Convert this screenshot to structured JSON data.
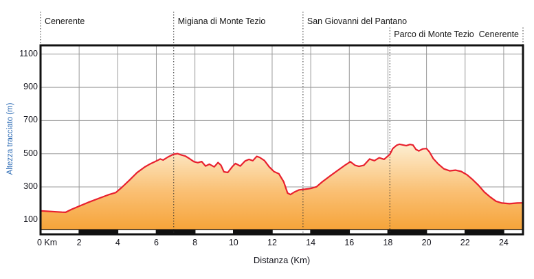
{
  "chart_data": {
    "type": "area",
    "title": "",
    "xlabel": "Distanza (Km)",
    "ylabel": "Altezza tracciato (m)",
    "xlim": [
      0,
      25
    ],
    "ylim": [
      0,
      1150
    ],
    "grid": "on",
    "x_tick_values": [
      0,
      2,
      4,
      6,
      8,
      10,
      12,
      14,
      16,
      18,
      20,
      22,
      24
    ],
    "x_tick_labels": [
      "0 Km",
      "2",
      "4",
      "6",
      "8",
      "10",
      "12",
      "14",
      "16",
      "18",
      "20",
      "22",
      "24"
    ],
    "y_tick_values": [
      1100,
      900,
      700,
      500,
      300,
      100
    ],
    "y_tick_labels": [
      "1100",
      "900",
      "700",
      "500",
      "300",
      "100"
    ],
    "annotations": [
      {
        "label": "Cenerente",
        "km": 0,
        "row": 1,
        "align": "left"
      },
      {
        "label": "Migiana di Monte Tezio",
        "km": 6.9,
        "row": 1,
        "align": "left"
      },
      {
        "label": "San Giovanni del Pantano",
        "km": 13.6,
        "row": 1,
        "align": "left"
      },
      {
        "label": "Parco di Monte Tezio",
        "km": 18.1,
        "row": 2,
        "align": "left"
      },
      {
        "label": "Cenerente",
        "km": 25,
        "row": 2,
        "align": "right"
      }
    ],
    "scale_bar": {
      "interval_km": 2,
      "pattern": [
        "white",
        "black"
      ]
    },
    "colors": {
      "line": "#e8202e",
      "fill_top": "#fdf2d9",
      "fill_mid": "#fabf72",
      "fill_bottom": "#f5a032",
      "grid": "#999999",
      "axis": "#111111",
      "ylabel_color": "#2e6cb5",
      "text": "#14141c"
    },
    "profile": [
      [
        0,
        156
      ],
      [
        0.4,
        153
      ],
      [
        0.8,
        150
      ],
      [
        1.1,
        148
      ],
      [
        1.3,
        147
      ],
      [
        1.6,
        164
      ],
      [
        2,
        184
      ],
      [
        2.5,
        208
      ],
      [
        3,
        230
      ],
      [
        3.5,
        252
      ],
      [
        3.9,
        266
      ],
      [
        4.2,
        296
      ],
      [
        4.6,
        340
      ],
      [
        5,
        386
      ],
      [
        5.4,
        420
      ],
      [
        5.7,
        440
      ],
      [
        6,
        456
      ],
      [
        6.2,
        468
      ],
      [
        6.35,
        462
      ],
      [
        6.6,
        480
      ],
      [
        6.9,
        497
      ],
      [
        7.1,
        501
      ],
      [
        7.3,
        492
      ],
      [
        7.5,
        486
      ],
      [
        7.7,
        472
      ],
      [
        7.95,
        452
      ],
      [
        8.15,
        446
      ],
      [
        8.35,
        453
      ],
      [
        8.55,
        426
      ],
      [
        8.75,
        437
      ],
      [
        9,
        421
      ],
      [
        9.2,
        447
      ],
      [
        9.35,
        431
      ],
      [
        9.5,
        391
      ],
      [
        9.7,
        387
      ],
      [
        9.95,
        424
      ],
      [
        10.1,
        441
      ],
      [
        10.35,
        426
      ],
      [
        10.6,
        456
      ],
      [
        10.8,
        466
      ],
      [
        11,
        458
      ],
      [
        11.2,
        484
      ],
      [
        11.35,
        478
      ],
      [
        11.6,
        459
      ],
      [
        11.85,
        421
      ],
      [
        12.1,
        392
      ],
      [
        12.35,
        379
      ],
      [
        12.6,
        331
      ],
      [
        12.8,
        263
      ],
      [
        12.95,
        254
      ],
      [
        13.15,
        269
      ],
      [
        13.4,
        282
      ],
      [
        13.7,
        286
      ],
      [
        14,
        291
      ],
      [
        14.3,
        301
      ],
      [
        14.6,
        331
      ],
      [
        15,
        366
      ],
      [
        15.3,
        391
      ],
      [
        15.8,
        433
      ],
      [
        16.05,
        452
      ],
      [
        16.3,
        430
      ],
      [
        16.5,
        424
      ],
      [
        16.75,
        430
      ],
      [
        17.05,
        468
      ],
      [
        17.3,
        458
      ],
      [
        17.55,
        476
      ],
      [
        17.8,
        466
      ],
      [
        17.95,
        481
      ],
      [
        18.1,
        496
      ],
      [
        18.25,
        531
      ],
      [
        18.45,
        551
      ],
      [
        18.6,
        557
      ],
      [
        18.8,
        552
      ],
      [
        18.95,
        549
      ],
      [
        19.15,
        556
      ],
      [
        19.3,
        552
      ],
      [
        19.45,
        526
      ],
      [
        19.6,
        517
      ],
      [
        19.8,
        529
      ],
      [
        20,
        531
      ],
      [
        20.15,
        511
      ],
      [
        20.35,
        471
      ],
      [
        20.6,
        439
      ],
      [
        20.9,
        409
      ],
      [
        21.2,
        397
      ],
      [
        21.5,
        401
      ],
      [
        21.8,
        393
      ],
      [
        22.1,
        373
      ],
      [
        22.4,
        343
      ],
      [
        22.7,
        309
      ],
      [
        23,
        269
      ],
      [
        23.3,
        239
      ],
      [
        23.6,
        214
      ],
      [
        23.9,
        203
      ],
      [
        24.3,
        199
      ],
      [
        24.7,
        203
      ],
      [
        25,
        204
      ]
    ]
  }
}
